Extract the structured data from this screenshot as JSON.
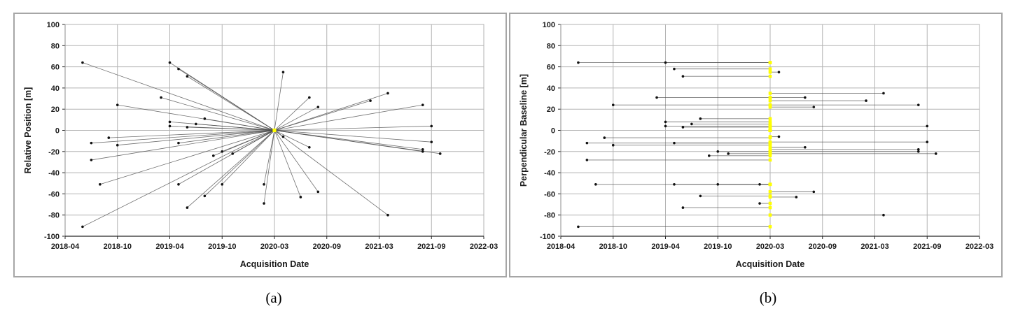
{
  "figure": {
    "caption_a": "(a)",
    "caption_b": "(b)"
  },
  "style": {
    "reference_color": "#ffff00",
    "point_color": "#111111",
    "line_color": "#4d4d4d",
    "grid_color": "#b3b3b3",
    "axis_color": "#8c8c8c",
    "axis_dark_color": "#262626",
    "panel_border_color": "#a6a6a6"
  },
  "chart_data": [
    {
      "type": "scatter",
      "panel": "a",
      "title": "",
      "xlabel": "Acquisition Date",
      "ylabel": "Relative Position [m]",
      "x_ticks": [
        "2018-04",
        "2018-10",
        "2019-04",
        "2019-10",
        "2020-03",
        "2020-09",
        "2021-03",
        "2021-09",
        "2022-03"
      ],
      "y_ticks": [
        100,
        80,
        60,
        40,
        20,
        0,
        -20,
        -40,
        -60,
        -80,
        -100
      ],
      "ylim": [
        -100,
        100
      ],
      "grid": true,
      "legend": "none",
      "connection": "radial-from-reference",
      "reference": {
        "date": "2020-03",
        "value": 0
      },
      "points": [
        {
          "date": "2018-06",
          "value": 64
        },
        {
          "date": "2018-06",
          "value": -91
        },
        {
          "date": "2018-07",
          "value": -12
        },
        {
          "date": "2018-07",
          "value": -28
        },
        {
          "date": "2018-08",
          "value": -51
        },
        {
          "date": "2018-09",
          "value": -7
        },
        {
          "date": "2018-10",
          "value": 24
        },
        {
          "date": "2018-10",
          "value": -14
        },
        {
          "date": "2019-03",
          "value": 31
        },
        {
          "date": "2019-04",
          "value": 64
        },
        {
          "date": "2019-04",
          "value": 8
        },
        {
          "date": "2019-04",
          "value": 4
        },
        {
          "date": "2019-05",
          "value": 58
        },
        {
          "date": "2019-05",
          "value": -12
        },
        {
          "date": "2019-05",
          "value": -51
        },
        {
          "date": "2019-06",
          "value": 51
        },
        {
          "date": "2019-06",
          "value": 3
        },
        {
          "date": "2019-06",
          "value": -73
        },
        {
          "date": "2019-07",
          "value": 6
        },
        {
          "date": "2019-08",
          "value": 11
        },
        {
          "date": "2019-08",
          "value": -62
        },
        {
          "date": "2019-09",
          "value": -24
        },
        {
          "date": "2019-10",
          "value": -51
        },
        {
          "date": "2019-10",
          "value": -20
        },
        {
          "date": "2019-11",
          "value": -22
        },
        {
          "date": "2020-02",
          "value": -69
        },
        {
          "date": "2020-02",
          "value": -51
        },
        {
          "date": "2020-04",
          "value": 55
        },
        {
          "date": "2020-04",
          "value": -6
        },
        {
          "date": "2020-06",
          "value": -63
        },
        {
          "date": "2020-07",
          "value": 31
        },
        {
          "date": "2020-07",
          "value": -16
        },
        {
          "date": "2020-08",
          "value": 22
        },
        {
          "date": "2020-08",
          "value": -58
        },
        {
          "date": "2021-02",
          "value": 28
        },
        {
          "date": "2021-04",
          "value": 35
        },
        {
          "date": "2021-04",
          "value": -80
        },
        {
          "date": "2021-08",
          "value": 24
        },
        {
          "date": "2021-08",
          "value": -20
        },
        {
          "date": "2021-08",
          "value": -18
        },
        {
          "date": "2021-09",
          "value": 4
        },
        {
          "date": "2021-09",
          "value": -11
        },
        {
          "date": "2021-10",
          "value": -22
        }
      ]
    },
    {
      "type": "scatter",
      "panel": "b",
      "title": "",
      "xlabel": "Acquisition Date",
      "ylabel": "Perpendicular Baseline [m]",
      "x_ticks": [
        "2018-04",
        "2018-10",
        "2019-04",
        "2019-10",
        "2020-03",
        "2020-09",
        "2021-03",
        "2021-09",
        "2022-03"
      ],
      "y_ticks": [
        100,
        80,
        60,
        40,
        20,
        0,
        -20,
        -40,
        -60,
        -80,
        -100
      ],
      "ylim": [
        -100,
        100
      ],
      "grid": true,
      "legend": "none",
      "connection": "horizontal-to-reference",
      "reference": {
        "date": "2020-03",
        "value": 0
      },
      "points": [
        {
          "date": "2018-06",
          "value": 64
        },
        {
          "date": "2018-06",
          "value": -91
        },
        {
          "date": "2018-07",
          "value": -12
        },
        {
          "date": "2018-07",
          "value": -28
        },
        {
          "date": "2018-08",
          "value": -51
        },
        {
          "date": "2018-09",
          "value": -7
        },
        {
          "date": "2018-10",
          "value": 24
        },
        {
          "date": "2018-10",
          "value": -14
        },
        {
          "date": "2019-03",
          "value": 31
        },
        {
          "date": "2019-04",
          "value": 64
        },
        {
          "date": "2019-04",
          "value": 8
        },
        {
          "date": "2019-04",
          "value": 4
        },
        {
          "date": "2019-05",
          "value": 58
        },
        {
          "date": "2019-05",
          "value": -12
        },
        {
          "date": "2019-05",
          "value": -51
        },
        {
          "date": "2019-06",
          "value": 51
        },
        {
          "date": "2019-06",
          "value": 3
        },
        {
          "date": "2019-06",
          "value": -73
        },
        {
          "date": "2019-07",
          "value": 6
        },
        {
          "date": "2019-08",
          "value": 11
        },
        {
          "date": "2019-08",
          "value": -62
        },
        {
          "date": "2019-09",
          "value": -24
        },
        {
          "date": "2019-10",
          "value": -51
        },
        {
          "date": "2019-10",
          "value": -20
        },
        {
          "date": "2019-11",
          "value": -22
        },
        {
          "date": "2020-02",
          "value": -69
        },
        {
          "date": "2020-02",
          "value": -51
        },
        {
          "date": "2020-04",
          "value": 55
        },
        {
          "date": "2020-04",
          "value": -6
        },
        {
          "date": "2020-06",
          "value": -63
        },
        {
          "date": "2020-07",
          "value": 31
        },
        {
          "date": "2020-07",
          "value": -16
        },
        {
          "date": "2020-08",
          "value": 22
        },
        {
          "date": "2020-08",
          "value": -58
        },
        {
          "date": "2021-02",
          "value": 28
        },
        {
          "date": "2021-04",
          "value": 35
        },
        {
          "date": "2021-04",
          "value": -80
        },
        {
          "date": "2021-08",
          "value": 24
        },
        {
          "date": "2021-08",
          "value": -20
        },
        {
          "date": "2021-08",
          "value": -18
        },
        {
          "date": "2021-09",
          "value": 4
        },
        {
          "date": "2021-09",
          "value": -11
        },
        {
          "date": "2021-10",
          "value": -22
        }
      ]
    }
  ]
}
